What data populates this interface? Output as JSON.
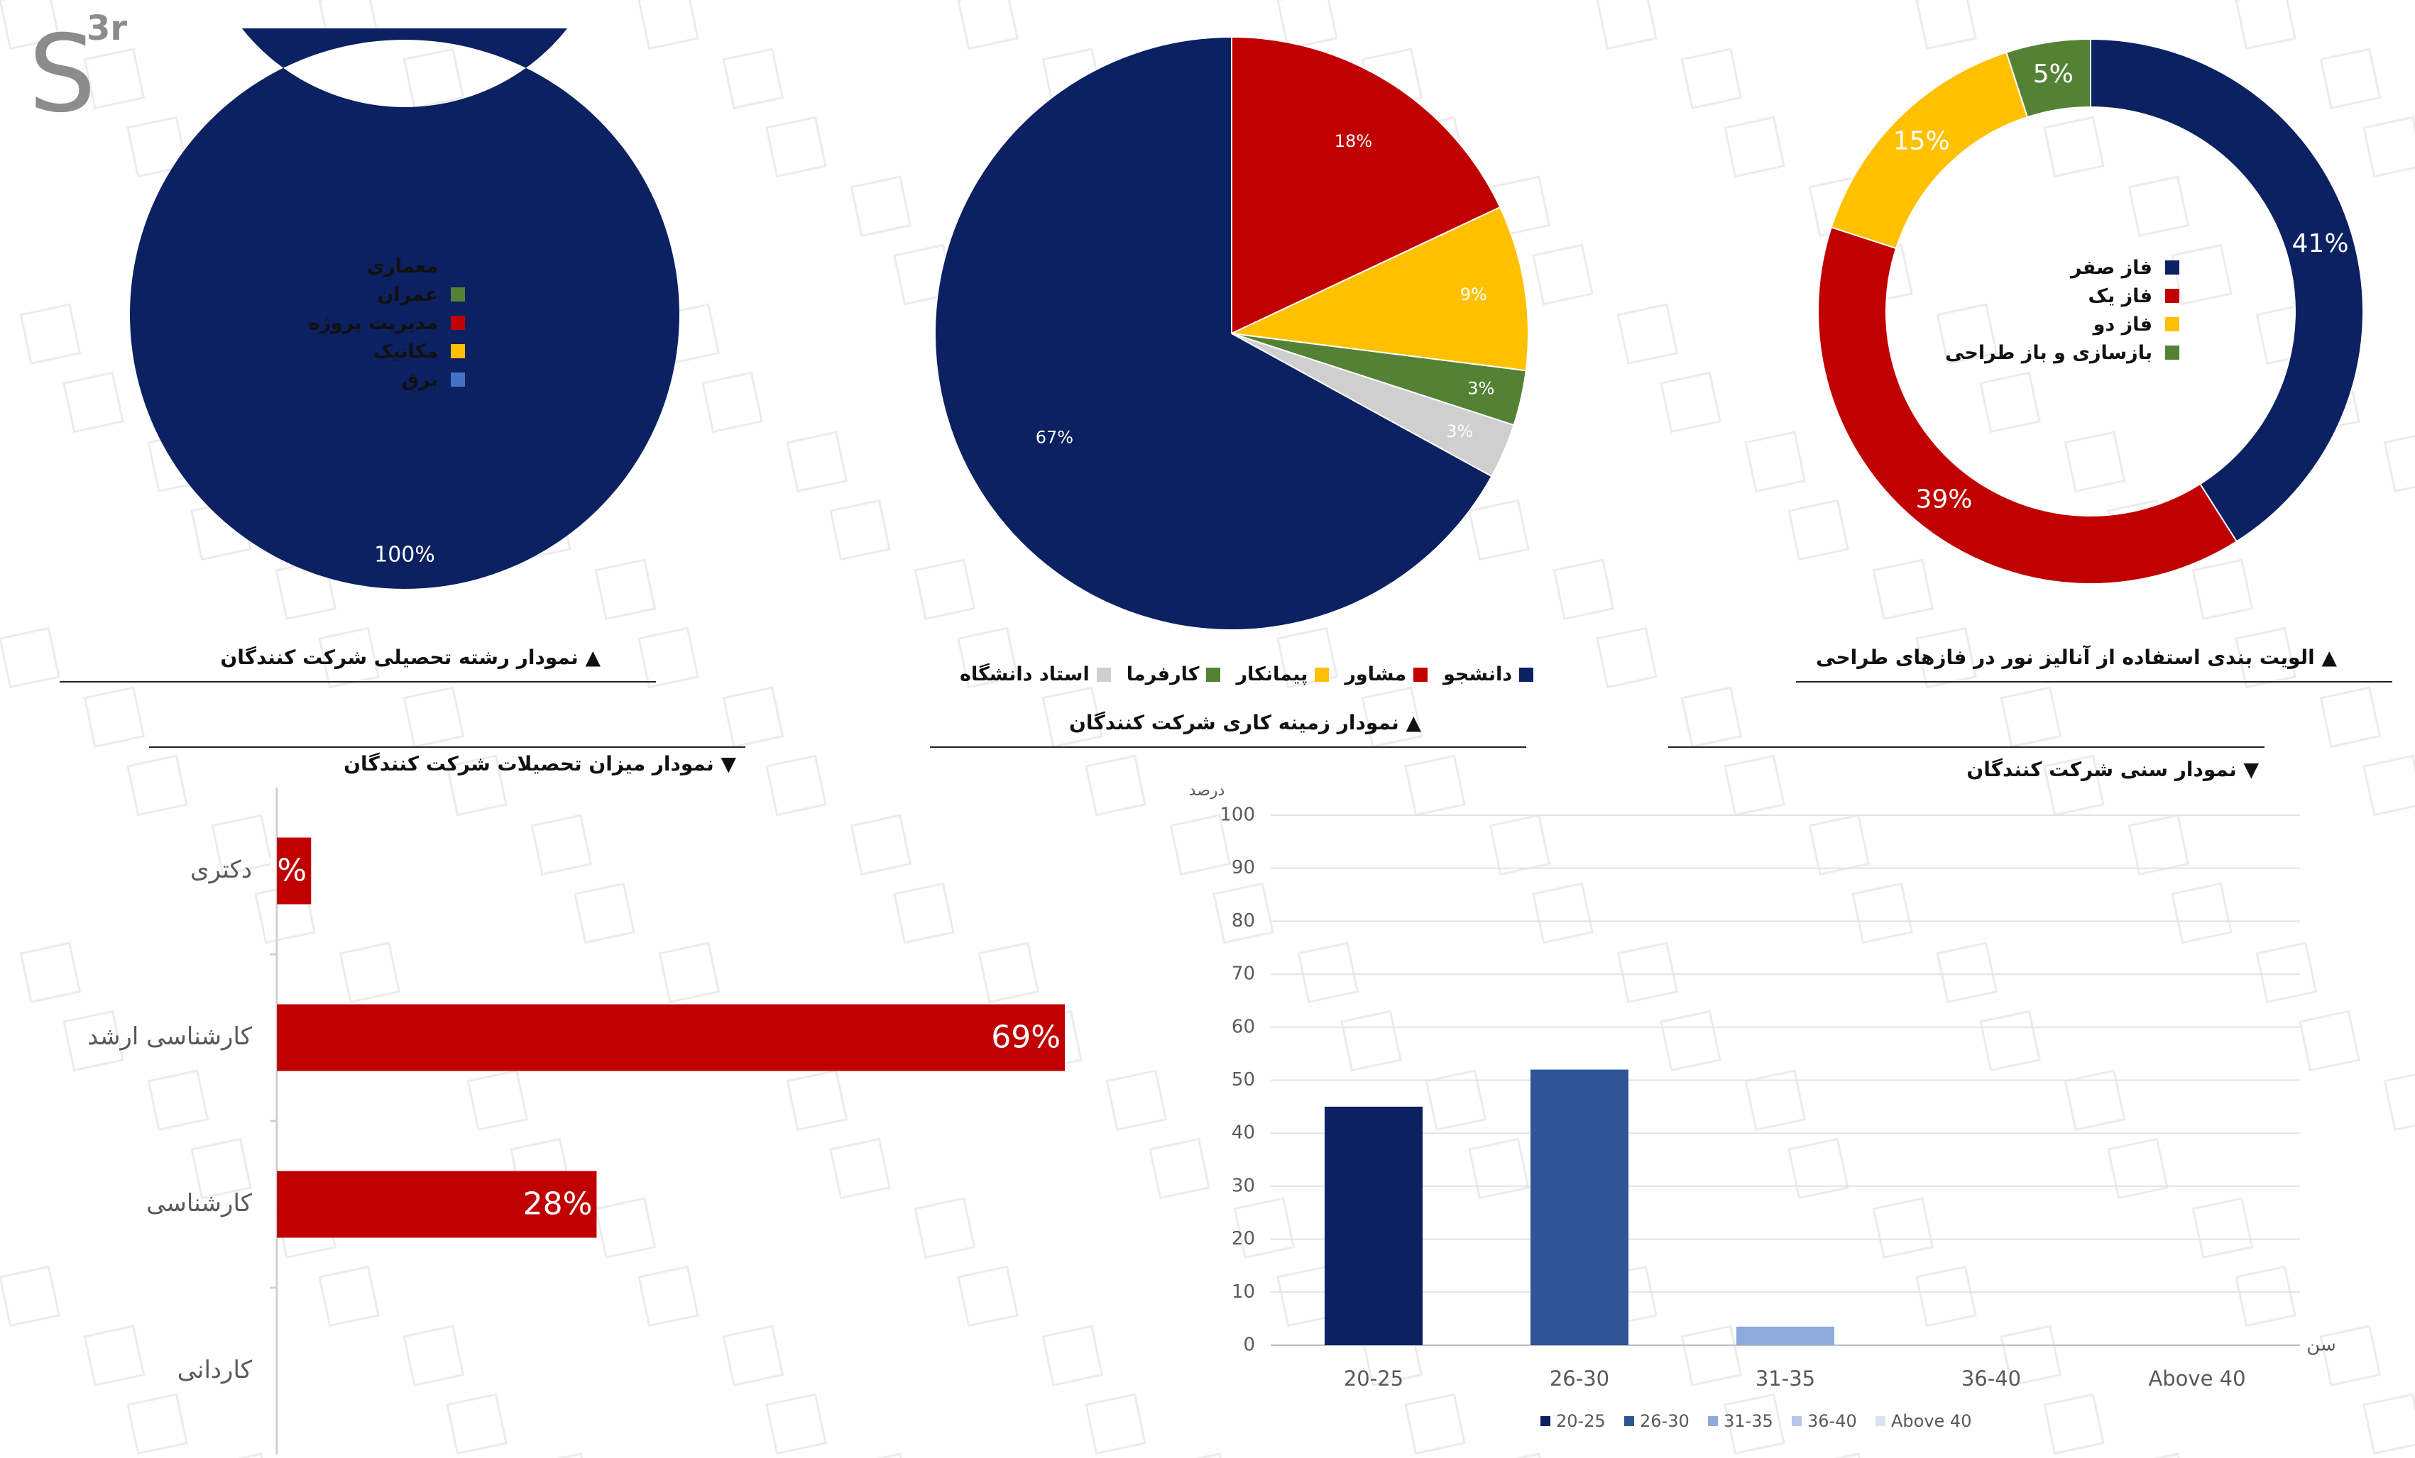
{
  "logo": {
    "main": "S",
    "sup": "3r"
  },
  "colors": {
    "navy": "#0b2161",
    "red": "#c00000",
    "yellow": "#ffc000",
    "green": "#548235",
    "lightgray": "#cfcfcf",
    "blue": "#4472c4",
    "midblue": "#2f5597",
    "lightblue": "#8faadc",
    "paleblue": "#b4c7e7",
    "palest": "#dae3f3"
  },
  "donut_field": {
    "caption": "▲ نمودار رشته تحصیلی شرکت کنندگان",
    "legend": [
      "معماری",
      "عمران",
      "مدیریت پروژه",
      "مکانیک",
      "برق"
    ]
  },
  "pie_work": {
    "caption": "▲ نمودار زمینه کاری شرکت کنندگان",
    "legend": [
      "دانشجو",
      "مشاور",
      "پیمانکار",
      "کارفرما",
      "استاد دانشگاه"
    ]
  },
  "donut_phase": {
    "caption": "▲ الویت بندی استفاده از آنالیز نور در فازهای طراحی",
    "legend": [
      "فاز صفر",
      "فاز یک",
      "فاز دو",
      "بازسازی و باز طراحی"
    ]
  },
  "bar_edu": {
    "caption": "▼ نمودار میزان تحصیلات شرکت کنندگان"
  },
  "col_age": {
    "caption": "▼ نمودار سنی شرکت کنندگان"
  },
  "chart_data": [
    {
      "type": "pie",
      "subtype": "donut",
      "categories": [
        "معماری",
        "عمران",
        "مدیریت پروژه",
        "مکانیک",
        "برق"
      ],
      "values": [
        100,
        0,
        0,
        0,
        0
      ],
      "labels": [
        "100%"
      ],
      "colors": [
        "#0b2161",
        "#548235",
        "#c00000",
        "#ffc000",
        "#4472c4"
      ],
      "title": "▲ نمودار رشته تحصیلی شرکت کنندگان"
    },
    {
      "type": "pie",
      "categories": [
        "دانشجو",
        "مشاور",
        "پیمانکار",
        "کارفرما",
        "استاد دانشگاه"
      ],
      "values": [
        67,
        18,
        9,
        3,
        3
      ],
      "labels": [
        "67%",
        "18%",
        "9%",
        "3%",
        "3%"
      ],
      "colors": [
        "#0b2161",
        "#c00000",
        "#ffc000",
        "#548235",
        "#cfcfcf"
      ],
      "title": "▲ نمودار زمینه کاری شرکت کنندگان"
    },
    {
      "type": "pie",
      "subtype": "donut",
      "categories": [
        "فاز صفر",
        "فاز یک",
        "فاز دو",
        "بازسازی و باز طراحی"
      ],
      "values": [
        41,
        39,
        15,
        5
      ],
      "labels": [
        "41%",
        "39%",
        "15%",
        "5%"
      ],
      "colors": [
        "#0b2161",
        "#c00000",
        "#ffc000",
        "#548235"
      ],
      "title": "▲ الویت بندی استفاده از آنالیز نور در فازهای طراحی"
    },
    {
      "type": "bar",
      "orientation": "horizontal",
      "categories": [
        "دکتری",
        "کارشناسی ارشد",
        "کارشناسی",
        "کاردانی"
      ],
      "values": [
        3,
        69,
        28,
        0
      ],
      "labels": [
        "3%",
        "69%",
        "28%",
        ""
      ],
      "xlim": [
        0,
        100
      ],
      "color": "#c00000",
      "title": "▼ نمودار میزان تحصیلات شرکت کنندگان"
    },
    {
      "type": "bar",
      "categories": [
        "20-25",
        "26-30",
        "31-35",
        "36-40",
        "Above 40"
      ],
      "values": [
        45,
        52,
        3.5,
        0,
        0
      ],
      "colors": [
        "#0b2161",
        "#2f5597",
        "#8faadc",
        "#b4c7e7",
        "#dae3f3"
      ],
      "legend": [
        "20-25",
        "26-30",
        "31-35",
        "36-40",
        "Above 40"
      ],
      "ylabel": "درصد",
      "xlabel": "سن",
      "ylim": [
        0,
        100
      ],
      "yticks": [
        0,
        10,
        20,
        30,
        40,
        50,
        60,
        70,
        80,
        90,
        100
      ],
      "grid": true,
      "legend_position": "bottom",
      "title": "▼ نمودار سنی شرکت کنندگان"
    }
  ]
}
